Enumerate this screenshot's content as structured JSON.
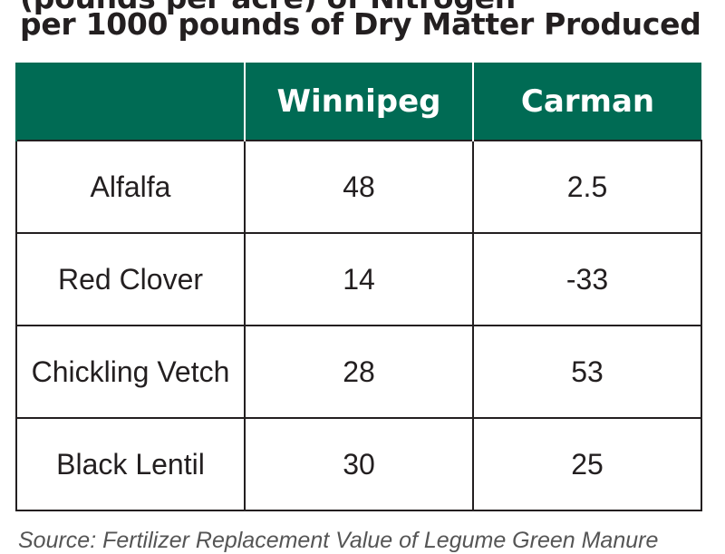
{
  "title": {
    "line1": "(pounds per acre) of Nitrogen",
    "line2": "per 1000 pounds of Dry Matter Produced"
  },
  "table": {
    "headers": [
      "",
      "Winnipeg",
      "Carman"
    ],
    "rows": [
      [
        "Alfalfa",
        "48",
        "2.5"
      ],
      [
        "Red Clover",
        "14",
        "-33"
      ],
      [
        "Chickling Vetch",
        "28",
        "53"
      ],
      [
        "Black Lentil",
        "30",
        "25"
      ]
    ]
  },
  "source": "Source: Fertilizer Replacement Value of Legume Green Manure"
}
